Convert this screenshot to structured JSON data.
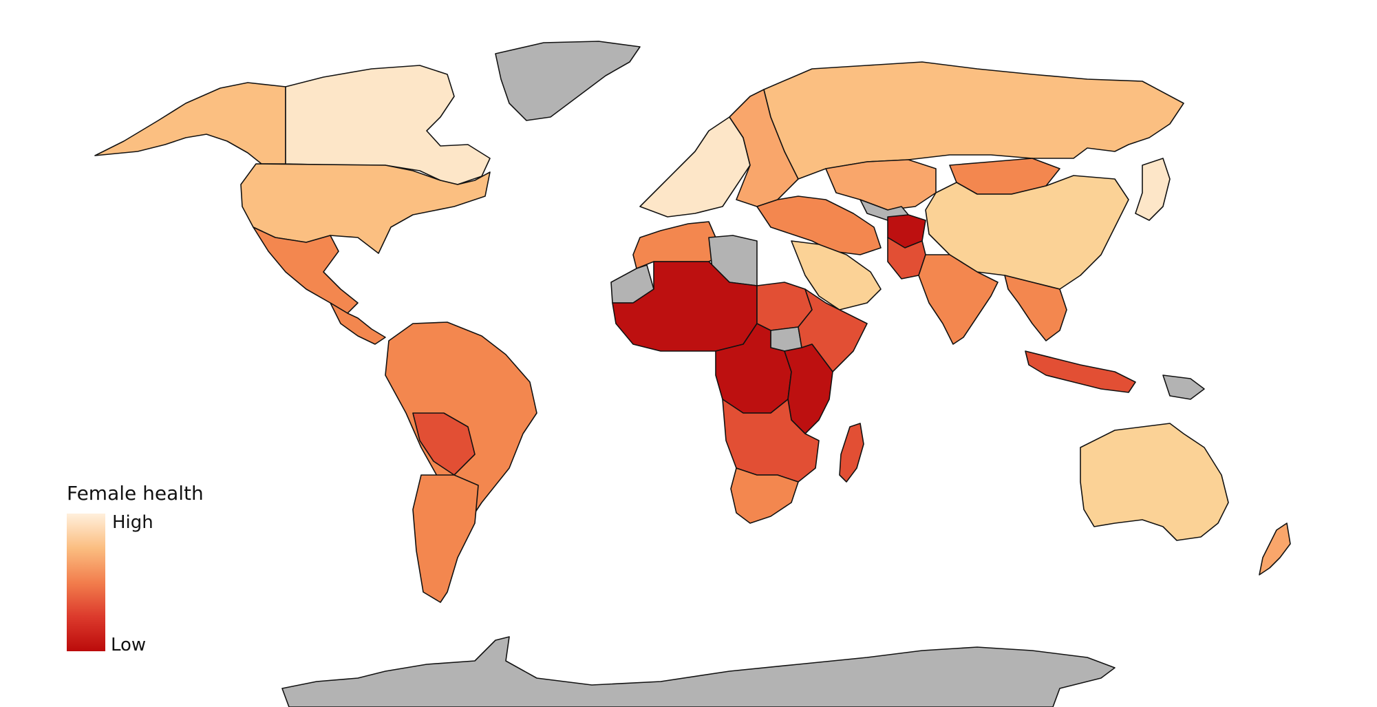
{
  "legend": {
    "title": "Female health",
    "high_label": "High",
    "low_label": "Low",
    "scale_colors": [
      "#fff0dc",
      "#fbbe81",
      "#f27e4d",
      "#dc3a2c",
      "#bb0b0b"
    ]
  },
  "colors": {
    "no_data": "#b3b3b3",
    "border": "#111111",
    "ocean": "#ffffff"
  },
  "map_data": {
    "type": "choropleth",
    "metric": "Female health",
    "scale": "High to Low (light to dark red)",
    "regions": [
      {
        "id": "canada",
        "level": "very-high"
      },
      {
        "id": "usa",
        "level": "high"
      },
      {
        "id": "alaska",
        "level": "high"
      },
      {
        "id": "greenland",
        "level": "no-data"
      },
      {
        "id": "mexico",
        "level": "medium"
      },
      {
        "id": "central-america",
        "level": "medium"
      },
      {
        "id": "south-america",
        "level": "medium"
      },
      {
        "id": "bolivia-paraguay",
        "level": "medium-low"
      },
      {
        "id": "argentina",
        "level": "medium"
      },
      {
        "id": "western-europe",
        "level": "very-high"
      },
      {
        "id": "eastern-europe",
        "level": "high-medium"
      },
      {
        "id": "russia",
        "level": "high"
      },
      {
        "id": "central-asia",
        "level": "high-medium"
      },
      {
        "id": "turkmenistan",
        "level": "no-data"
      },
      {
        "id": "mongolia",
        "level": "medium"
      },
      {
        "id": "china",
        "level": "high-plus"
      },
      {
        "id": "japan-korea",
        "level": "very-high"
      },
      {
        "id": "middle-east",
        "level": "medium"
      },
      {
        "id": "arabian-peninsula",
        "level": "high-plus"
      },
      {
        "id": "afghanistan",
        "level": "low"
      },
      {
        "id": "pakistan",
        "level": "medium-low"
      },
      {
        "id": "india",
        "level": "medium"
      },
      {
        "id": "southeast-asia",
        "level": "medium"
      },
      {
        "id": "indonesia",
        "level": "medium-low"
      },
      {
        "id": "papua-new-guinea",
        "level": "no-data"
      },
      {
        "id": "australia",
        "level": "high-plus"
      },
      {
        "id": "new-zealand",
        "level": "high-medium"
      },
      {
        "id": "north-africa",
        "level": "medium"
      },
      {
        "id": "libya",
        "level": "no-data"
      },
      {
        "id": "western-sahara",
        "level": "no-data"
      },
      {
        "id": "sahel",
        "level": "low"
      },
      {
        "id": "sudan",
        "level": "medium-low"
      },
      {
        "id": "south-sudan",
        "level": "no-data"
      },
      {
        "id": "horn-of-africa",
        "level": "medium-low"
      },
      {
        "id": "central-africa",
        "level": "low"
      },
      {
        "id": "east-africa",
        "level": "low"
      },
      {
        "id": "southern-africa",
        "level": "medium-low"
      },
      {
        "id": "south-africa",
        "level": "medium"
      },
      {
        "id": "madagascar",
        "level": "medium-low"
      },
      {
        "id": "antarctica",
        "level": "no-data"
      }
    ]
  }
}
